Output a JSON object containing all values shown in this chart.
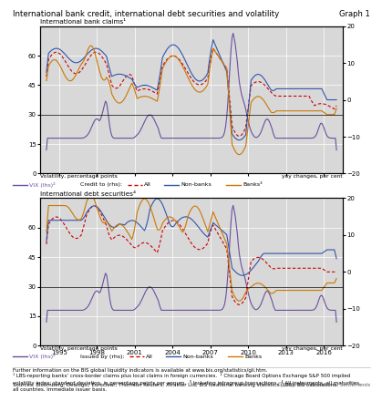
{
  "title": "International bank credit, international debt securities and volatility",
  "graph_label": "Graph 1",
  "panel1_title": "International bank claims¹",
  "panel1_ylabel_left": "Volatility, percentage points",
  "panel1_ylabel_right": "yoy changes, per cent",
  "panel2_title": "International debt securities⁴",
  "panel2_ylabel_left": "Volatility, percentage points",
  "panel2_ylabel_right": "yoy changes, per cent",
  "xlim_start": 1993.5,
  "xlim_end": 2017.5,
  "ylim_left": [
    0,
    75
  ],
  "ylim_right": [
    -20,
    20
  ],
  "yticks_left": [
    0,
    15,
    30,
    45,
    60
  ],
  "yticks_right": [
    -20,
    -10,
    0,
    10,
    20
  ],
  "xticks": [
    1995,
    1998,
    2001,
    2004,
    2007,
    2010,
    2013,
    2016
  ],
  "footnote1": "Further information on the BIS global liquidity indicators is available at www.bis.org/statistics/gli.htm.",
  "footnote2": "¹ LBS-reporting banks’ cross-border claims plus local claims in foreign currencies.  ² Chicago Board Options Exchange S&P 500 implied\nvolatility index; standard deviation, in percentage points per annum.  ³ Including intragroup transactions.  ⁴ All instruments, all maturities,\nall countries. Immediate issuer basis.",
  "footnote3": "Sources: Bloomberg; Dealogic; Euroclear; Thomson Reuters; Xtrakter Ltd; BIS locational banking statistics (LBS); BIS calculations.",
  "footnote4": "© Bank for International Settlements",
  "color_vix": "#6b4fa0",
  "color_all": "#cc0000",
  "color_nonbanks": "#3355aa",
  "color_banks": "#cc7700",
  "bg_color": "#d8d8d8",
  "legend1_vix": "VIX (lhs)²",
  "legend1_credit": "Credit to (rhs):",
  "legend1_all": "All",
  "legend1_nonbanks": "Non-banks",
  "legend1_banks": "Banks³",
  "legend2_vix": "VIX (lhs)²",
  "legend2_issued": "Issued by (rhs):",
  "legend2_all": "All",
  "legend2_nonbanks": "Non-banks",
  "legend2_banks": "Banks"
}
